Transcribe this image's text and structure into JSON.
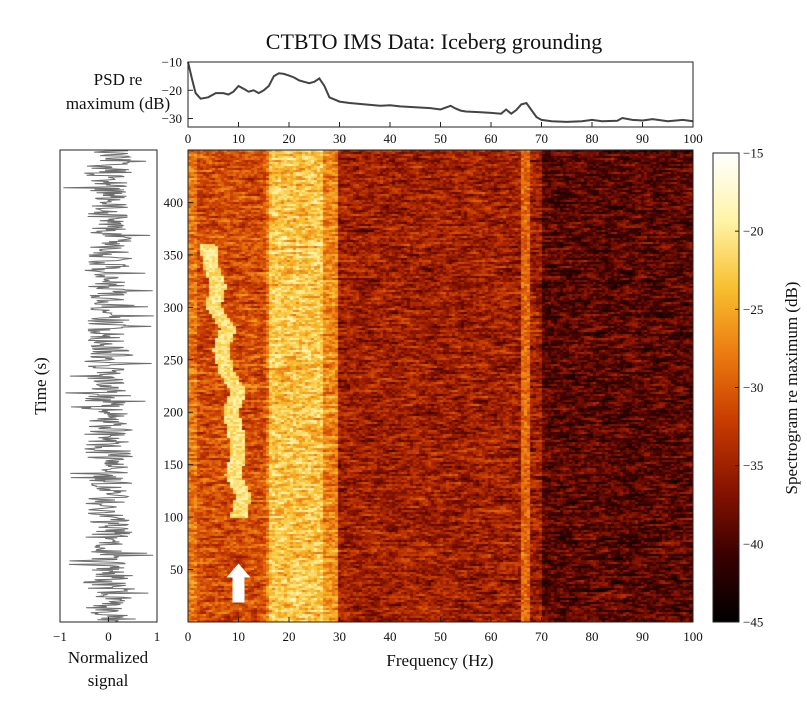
{
  "chart_data": [
    {
      "type": "line",
      "role": "psd-panel",
      "title": "CTBTO IMS Data: Iceberg grounding",
      "ylabel_lines": [
        "PSD re",
        "maximum (dB)"
      ],
      "xlim": [
        0,
        100
      ],
      "ylim": [
        -33,
        -10
      ],
      "yticks": [
        -10,
        -20,
        -30
      ],
      "xticks": [
        0,
        10,
        20,
        30,
        40,
        50,
        60,
        70,
        80,
        90,
        100
      ],
      "grid": false,
      "series": [
        {
          "color": "#444444",
          "x": [
            0,
            0.8,
            1.5,
            2.5,
            4,
            5.5,
            7,
            8,
            9,
            10,
            11,
            12,
            13,
            14,
            15,
            16,
            17,
            18,
            19,
            20,
            21,
            22,
            23,
            24,
            25,
            26,
            27,
            28,
            30,
            32,
            35,
            38,
            40,
            42,
            45,
            48,
            50,
            52,
            53,
            54,
            55,
            58,
            60,
            62,
            63,
            64,
            65,
            66,
            67,
            68,
            69,
            70,
            72,
            75,
            78,
            80,
            82,
            85,
            86,
            88,
            90,
            92,
            95,
            98,
            100
          ],
          "y": [
            -10,
            -16,
            -21,
            -23,
            -22.5,
            -21,
            -21,
            -21.5,
            -20.5,
            -18.5,
            -19.5,
            -20.5,
            -20,
            -21,
            -20,
            -18.5,
            -15,
            -14,
            -14.2,
            -14.8,
            -15.5,
            -16.5,
            -17,
            -17.5,
            -17,
            -15.8,
            -18.5,
            -22.5,
            -24,
            -24.5,
            -25,
            -25.5,
            -25.3,
            -25.7,
            -26,
            -26.3,
            -26.8,
            -25.5,
            -26.5,
            -27.2,
            -27.5,
            -27.8,
            -28,
            -28.3,
            -26.8,
            -28.3,
            -27,
            -25,
            -24.5,
            -27,
            -29.5,
            -30.5,
            -31,
            -31.2,
            -31,
            -30.5,
            -31,
            -30.8,
            -29.8,
            -30.5,
            -30.7,
            -30.2,
            -31,
            -30.5,
            -31
          ]
        }
      ]
    },
    {
      "type": "heatmap",
      "role": "spectrogram",
      "xlabel": "Frequency (Hz)",
      "ylabel": "Time (s)",
      "xlim": [
        0,
        100
      ],
      "ylim": [
        0,
        450
      ],
      "xticks": [
        0,
        10,
        20,
        30,
        40,
        50,
        60,
        70,
        80,
        90,
        100
      ],
      "yticks": [
        50,
        100,
        150,
        200,
        250,
        300,
        350,
        400
      ],
      "colorbar": {
        "label": "Spectrogram re maximum (dB)",
        "range": [
          -45,
          -15
        ],
        "ticks": [
          -15,
          -20,
          -25,
          -30,
          -35,
          -40,
          -45
        ],
        "colormap": [
          "#000000",
          "#3a0000",
          "#8a1400",
          "#c83c00",
          "#ec7a10",
          "#f8c030",
          "#fff4a8",
          "#ffffff"
        ]
      },
      "features": {
        "broadband_band_hz": [
          16,
          27
        ],
        "broadband_level_db": -23,
        "line_at_hz": 67,
        "line_level_db": -29,
        "low_freq_edge_hz": 1.5,
        "gliding_tremor": {
          "time_s": [
            100,
            120,
            140,
            160,
            180,
            200,
            220,
            240,
            260,
            280,
            300,
            320,
            340,
            360
          ],
          "freq_hz": [
            10,
            11,
            9,
            10,
            9.5,
            8.5,
            10,
            7.5,
            6.5,
            8,
            5,
            6,
            4.5,
            4
          ],
          "level_db": -21
        },
        "background_db": {
          "0-15Hz": -31,
          "27-30Hz": -27,
          "30-70Hz": -35,
          "70-100Hz": -39
        }
      },
      "annotations": [
        {
          "shape": "arrow",
          "direction": "up",
          "color": "#ffffff",
          "at_hz": 10,
          "at_time_s": 50
        }
      ]
    },
    {
      "type": "line",
      "role": "waveform",
      "xlabel_lines": [
        "Normalized",
        "signal"
      ],
      "xlim": [
        -1,
        1
      ],
      "xticks": [
        -1,
        0,
        1
      ],
      "ylim": [
        0,
        450
      ],
      "color": "#6e6e6e",
      "envelope_amplitude": 0.6
    }
  ]
}
